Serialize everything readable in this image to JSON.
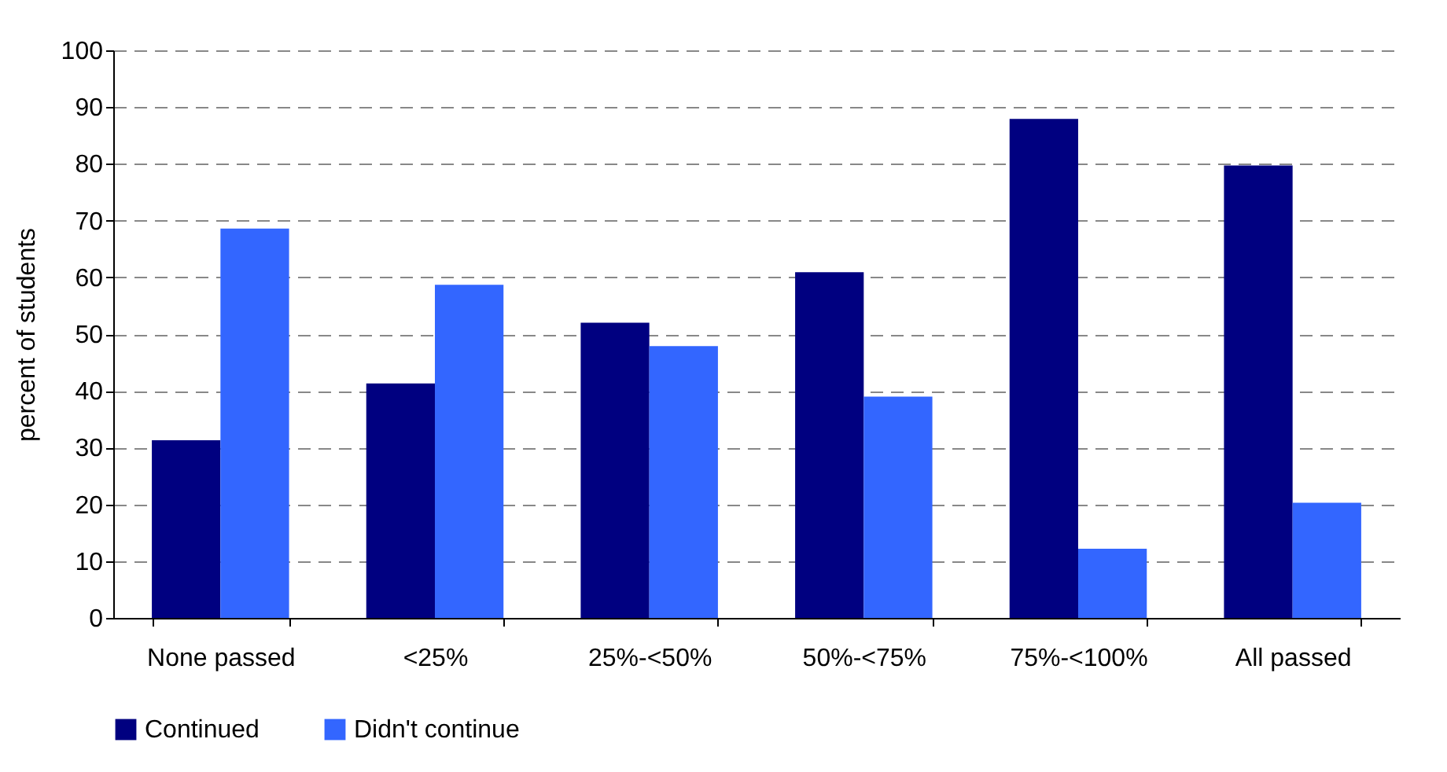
{
  "chart_data": {
    "type": "bar",
    "ylabel": "percent of students",
    "categories": [
      "None passed",
      "<25%",
      "25%-<50%",
      "50%-<75%",
      "75%-<100%",
      "All passed"
    ],
    "series": [
      {
        "name": "Continued",
        "color": "#000080",
        "values": [
          31.3,
          41.3,
          52.0,
          60.9,
          87.9,
          79.7
        ]
      },
      {
        "name": "Didn't continue",
        "color": "#3366ff",
        "values": [
          68.6,
          58.7,
          47.9,
          39.0,
          12.2,
          20.3
        ]
      }
    ],
    "ylim": [
      0,
      100
    ],
    "yticks": [
      0,
      10,
      20,
      30,
      40,
      50,
      60,
      70,
      80,
      90,
      100
    ],
    "grid": "y",
    "legend": "bottom"
  }
}
